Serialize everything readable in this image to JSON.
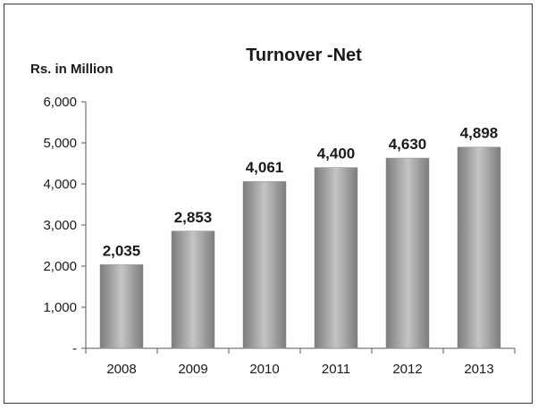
{
  "chart_data": {
    "type": "bar",
    "title": "Turnover -Net",
    "ylabel": "Rs. in Million",
    "xlabel": "",
    "categories": [
      "2008",
      "2009",
      "2010",
      "2011",
      "2012",
      "2013"
    ],
    "values": [
      2035,
      2853,
      4061,
      4400,
      4630,
      4898
    ],
    "data_labels": [
      "2,035",
      "2,853",
      "4,061",
      "4,400",
      "4,630",
      "4,898"
    ],
    "ylim": [
      0,
      6000
    ],
    "yticks": [
      0,
      1000,
      2000,
      3000,
      4000,
      5000,
      6000
    ],
    "ytick_labels": [
      "-",
      "1,000",
      "2,000",
      "3,000",
      "4,000",
      "5,000",
      "6,000"
    ],
    "grid": false,
    "legend": "none",
    "bar_color": "#9a9a9a"
  }
}
